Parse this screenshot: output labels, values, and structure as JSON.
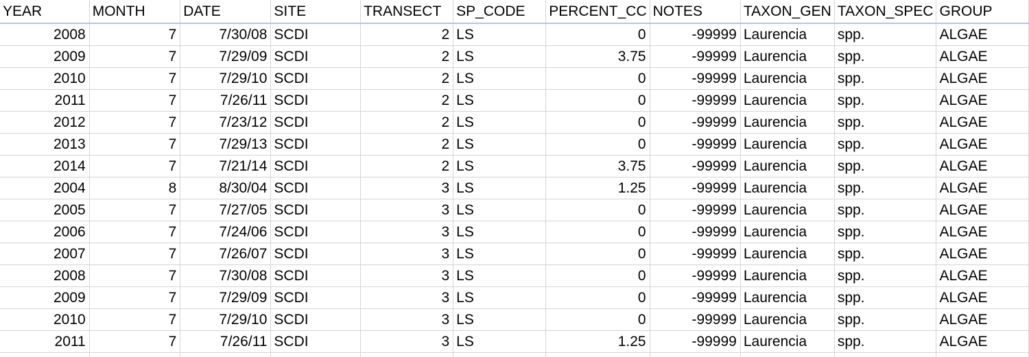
{
  "columns": [
    {
      "key": "year",
      "label": "YEAR",
      "align": "num"
    },
    {
      "key": "month",
      "label": "MONTH",
      "align": "num"
    },
    {
      "key": "date",
      "label": "DATE",
      "align": "num"
    },
    {
      "key": "site",
      "label": "SITE",
      "align": "txt"
    },
    {
      "key": "transect",
      "label": "TRANSECT",
      "align": "num"
    },
    {
      "key": "sp_code",
      "label": "SP_CODE",
      "align": "txt"
    },
    {
      "key": "percent_cover",
      "label": "PERCENT_CC",
      "align": "num"
    },
    {
      "key": "notes",
      "label": "NOTES",
      "align": "num"
    },
    {
      "key": "taxon_genus",
      "label": "TAXON_GEN",
      "align": "txt"
    },
    {
      "key": "taxon_species",
      "label": "TAXON_SPEC",
      "align": "txt"
    },
    {
      "key": "group",
      "label": "GROUP",
      "align": "txt"
    }
  ],
  "rows": [
    [
      "2008",
      "7",
      "7/30/08",
      "SCDI",
      "2",
      "LS",
      "0",
      "-99999",
      "Laurencia",
      "spp.",
      "ALGAE"
    ],
    [
      "2009",
      "7",
      "7/29/09",
      "SCDI",
      "2",
      "LS",
      "3.75",
      "-99999",
      "Laurencia",
      "spp.",
      "ALGAE"
    ],
    [
      "2010",
      "7",
      "7/29/10",
      "SCDI",
      "2",
      "LS",
      "0",
      "-99999",
      "Laurencia",
      "spp.",
      "ALGAE"
    ],
    [
      "2011",
      "7",
      "7/26/11",
      "SCDI",
      "2",
      "LS",
      "0",
      "-99999",
      "Laurencia",
      "spp.",
      "ALGAE"
    ],
    [
      "2012",
      "7",
      "7/23/12",
      "SCDI",
      "2",
      "LS",
      "0",
      "-99999",
      "Laurencia",
      "spp.",
      "ALGAE"
    ],
    [
      "2013",
      "7",
      "7/29/13",
      "SCDI",
      "2",
      "LS",
      "0",
      "-99999",
      "Laurencia",
      "spp.",
      "ALGAE"
    ],
    [
      "2014",
      "7",
      "7/21/14",
      "SCDI",
      "2",
      "LS",
      "3.75",
      "-99999",
      "Laurencia",
      "spp.",
      "ALGAE"
    ],
    [
      "2004",
      "8",
      "8/30/04",
      "SCDI",
      "3",
      "LS",
      "1.25",
      "-99999",
      "Laurencia",
      "spp.",
      "ALGAE"
    ],
    [
      "2005",
      "7",
      "7/27/05",
      "SCDI",
      "3",
      "LS",
      "0",
      "-99999",
      "Laurencia",
      "spp.",
      "ALGAE"
    ],
    [
      "2006",
      "7",
      "7/24/06",
      "SCDI",
      "3",
      "LS",
      "0",
      "-99999",
      "Laurencia",
      "spp.",
      "ALGAE"
    ],
    [
      "2007",
      "7",
      "7/26/07",
      "SCDI",
      "3",
      "LS",
      "0",
      "-99999",
      "Laurencia",
      "spp.",
      "ALGAE"
    ],
    [
      "2008",
      "7",
      "7/30/08",
      "SCDI",
      "3",
      "LS",
      "0",
      "-99999",
      "Laurencia",
      "spp.",
      "ALGAE"
    ],
    [
      "2009",
      "7",
      "7/29/09",
      "SCDI",
      "3",
      "LS",
      "0",
      "-99999",
      "Laurencia",
      "spp.",
      "ALGAE"
    ],
    [
      "2010",
      "7",
      "7/29/10",
      "SCDI",
      "3",
      "LS",
      "0",
      "-99999",
      "Laurencia",
      "spp.",
      "ALGAE"
    ],
    [
      "2011",
      "7",
      "7/26/11",
      "SCDI",
      "3",
      "LS",
      "1.25",
      "-99999",
      "Laurencia",
      "spp.",
      "ALGAE"
    ]
  ],
  "colors": {
    "gridline": "#d4d4d4",
    "header_underline": "#b7c5e0",
    "text": "#000000"
  }
}
